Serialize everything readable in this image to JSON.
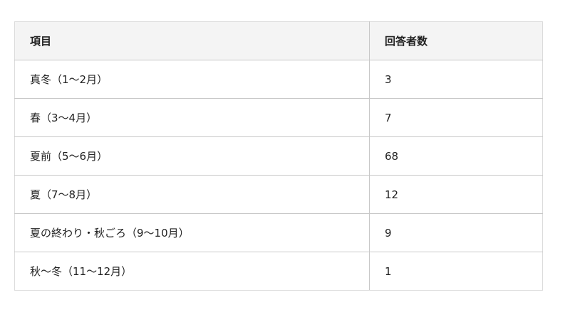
{
  "table": {
    "headers": [
      "項目",
      "回答者数"
    ],
    "rows": [
      [
        "真冬（1〜2月）",
        "3"
      ],
      [
        "春（3〜4月）",
        "7"
      ],
      [
        "夏前（5〜6月）",
        "68"
      ],
      [
        "夏（7〜8月）",
        "12"
      ],
      [
        "夏の終わり・秋ごろ（9〜10月）",
        "9"
      ],
      [
        "秋〜冬（11〜12月）",
        "1"
      ]
    ]
  }
}
